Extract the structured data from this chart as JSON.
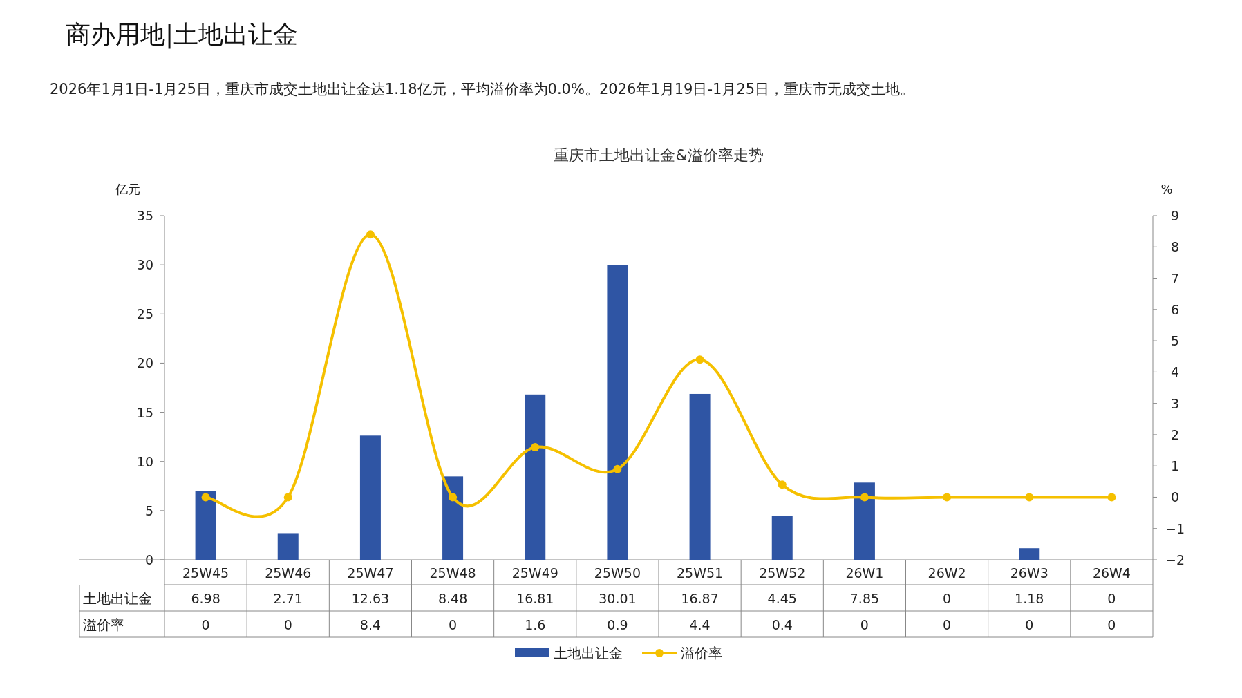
{
  "chart_data": {
    "type": "bar",
    "title": "商办用地|土地出让金",
    "subtitle": "2026年1月1日-1月25日，重庆市成交土地出让金达1.18亿元，平均溢价率为0.0%。2026年1月19日-1月25日，重庆市无成交土地。",
    "annotations": [
      "重庆市土地出让金&溢价率走势"
    ],
    "ylabel": "亿元",
    "y2label": "%",
    "categories": [
      "25W45",
      "25W46",
      "25W47",
      "25W48",
      "25W49",
      "25W50",
      "25W51",
      "25W52",
      "26W1",
      "26W2",
      "26W3",
      "26W4"
    ],
    "series": [
      {
        "name": "土地出让金",
        "color": "#2f55a4",
        "values": [
          6.98,
          2.71,
          12.63,
          8.48,
          16.81,
          30.01,
          16.87,
          4.45,
          7.85,
          0,
          1.18,
          0
        ]
      },
      {
        "name": "溢价率",
        "type": "line",
        "axis": "y2",
        "color": "#f5c000",
        "marker": "circle",
        "values": [
          0,
          0,
          8.4,
          0,
          1.6,
          0.9,
          4.4,
          0.4,
          0,
          0,
          0,
          0
        ]
      }
    ],
    "ylim": [
      0,
      35
    ],
    "yticks": [
      0,
      5,
      10,
      15,
      20,
      25,
      30,
      35
    ],
    "y2lim": [
      -2,
      9
    ],
    "y2ticks": [
      -2,
      -1,
      0,
      1,
      2,
      3,
      4,
      5,
      6,
      7,
      8,
      9
    ],
    "data_labels": true,
    "legend": "bottom",
    "grid": false
  }
}
